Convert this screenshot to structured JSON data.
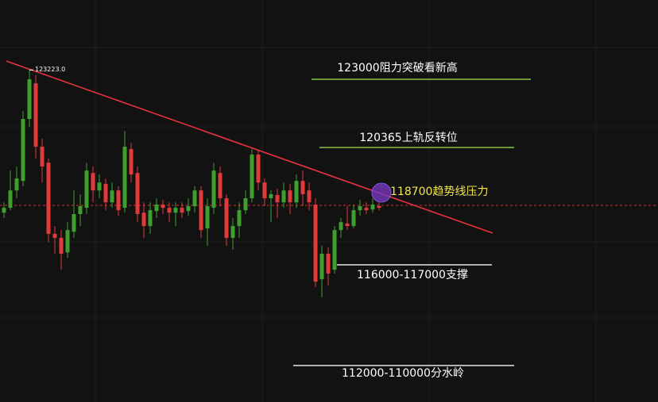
{
  "chart_data": {
    "type": "candlestick",
    "ylim": [
      111000,
      125800
    ],
    "up_color": "#3f9f2e",
    "down_color": "#e03a3a",
    "peak_label": "123223.0",
    "open": [
      117970,
      118150,
      118790,
      119140,
      121420,
      122730,
      120400,
      119810,
      117190,
      117040,
      116510,
      117270,
      117920,
      118150,
      119430,
      118790,
      119030,
      118350,
      118790,
      118150,
      120310,
      119430,
      117970,
      117480,
      118030,
      118270,
      118150,
      117970,
      118150,
      118030,
      118210,
      118790,
      117390,
      118150,
      119430,
      118500,
      117040,
      117480,
      118060,
      118500,
      120110,
      119080,
      118500,
      118620,
      118350,
      118790,
      118350,
      119140,
      118790,
      118270,
      115520,
      116460,
      115870,
      117330,
      117570,
      117480,
      118060,
      118150,
      118090,
      118210
    ],
    "high": [
      118350,
      119520,
      119670,
      121710,
      123223,
      123030,
      120690,
      119960,
      117480,
      117330,
      117620,
      118790,
      118650,
      119810,
      119670,
      119380,
      119230,
      119080,
      118940,
      120980,
      120540,
      119670,
      118350,
      118350,
      118500,
      118440,
      118350,
      118350,
      118350,
      118500,
      118940,
      118940,
      118500,
      119810,
      119670,
      118650,
      117770,
      118350,
      118790,
      120310,
      120250,
      119230,
      118790,
      118850,
      119080,
      119030,
      119380,
      119520,
      119080,
      118500,
      116750,
      116690,
      117480,
      117770,
      118210,
      118270,
      118440,
      118350,
      118500,
      118350
    ],
    "low": [
      117770,
      118060,
      118500,
      118940,
      121130,
      119960,
      119080,
      116890,
      116460,
      115870,
      116310,
      117040,
      117480,
      117920,
      118350,
      118500,
      118060,
      118150,
      117860,
      117970,
      119080,
      117620,
      117040,
      117190,
      117770,
      117920,
      117620,
      117480,
      117770,
      117860,
      117970,
      117040,
      116750,
      117920,
      118210,
      116750,
      116600,
      117040,
      117920,
      118350,
      118790,
      118210,
      117620,
      117770,
      118150,
      117920,
      118150,
      118210,
      118060,
      115230,
      114850,
      115290,
      115730,
      117040,
      117330,
      117390,
      117860,
      117920,
      117970,
      118060
    ],
    "close": [
      118150,
      118790,
      119230,
      121420,
      122880,
      120400,
      119670,
      117190,
      117040,
      116460,
      117330,
      117920,
      118210,
      119520,
      118790,
      119080,
      118350,
      118790,
      118060,
      120400,
      119380,
      117920,
      117480,
      118060,
      118270,
      118150,
      117970,
      118150,
      117970,
      118210,
      118790,
      117330,
      118210,
      119520,
      118500,
      117040,
      117480,
      118060,
      118500,
      120110,
      119080,
      118500,
      118650,
      118350,
      118790,
      118350,
      119140,
      118650,
      118350,
      115430,
      116460,
      115730,
      117330,
      117620,
      117480,
      118060,
      118210,
      118060,
      118270,
      118150
    ],
    "annotations": [
      {
        "text": "123000阻力突破看新高",
        "color": "#ffffff",
        "line_color": "#8bc34a"
      },
      {
        "text": "120365上轨反转位",
        "color": "#ffffff",
        "line_color": "#8bc34a"
      },
      {
        "text": "118700趋势线压力",
        "color": "#f2e64a",
        "line_color": null
      },
      {
        "text": "116000-117000支撑",
        "color": "#ffffff",
        "line_color": "#e6e6e6"
      },
      {
        "text": "112000-110000分水岭",
        "color": "#ffffff",
        "line_color": "#e6e6e6"
      }
    ]
  }
}
